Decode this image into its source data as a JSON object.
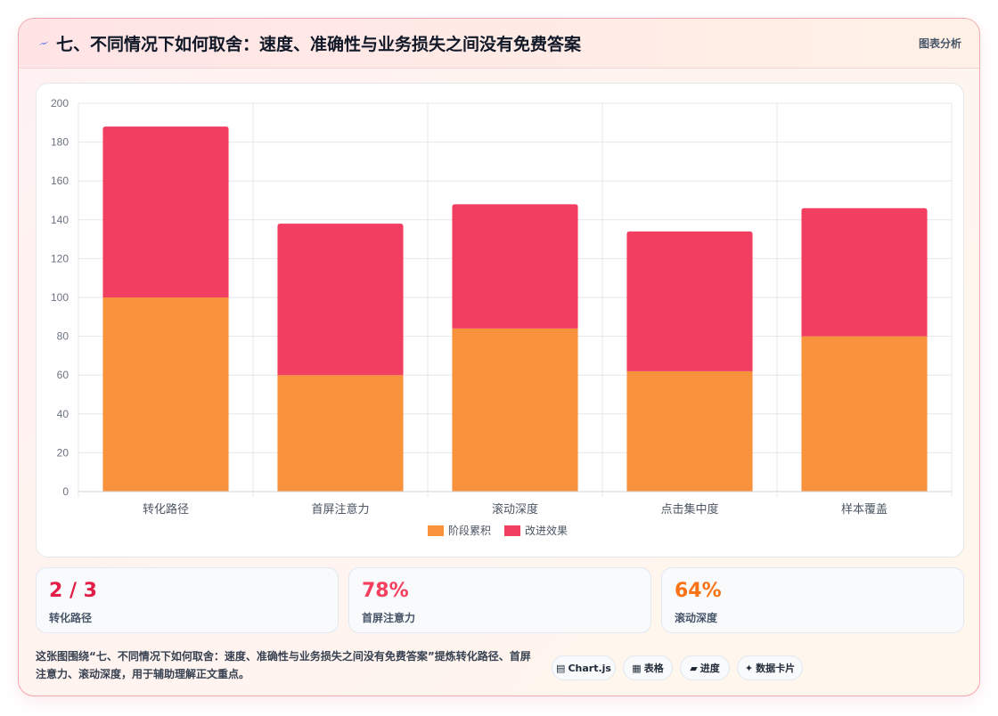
{
  "header": {
    "icon": "lightning-icon",
    "title": "七、不同情况下如何取舍：速度、准确性与业务损失之间没有免费答案",
    "tag": "图表分析"
  },
  "chart_data": {
    "type": "bar",
    "stacked": true,
    "categories": [
      "转化路径",
      "首屏注意力",
      "滚动深度",
      "点击集中度",
      "样本覆盖"
    ],
    "series": [
      {
        "name": "阶段累积",
        "color": "#f9923d",
        "values": [
          100,
          60,
          84,
          62,
          80
        ]
      },
      {
        "name": "改进效果",
        "color": "#f23f61",
        "values": [
          88,
          78,
          64,
          72,
          66
        ]
      }
    ],
    "ylim": [
      0,
      200
    ],
    "yticks": [
      0,
      20,
      40,
      60,
      80,
      100,
      120,
      140,
      160,
      180,
      200
    ],
    "grid": true,
    "legend_position": "bottom"
  },
  "stats": [
    {
      "value": "2 / 3",
      "label": "转化路径",
      "color": "#e11d48"
    },
    {
      "value": "78%",
      "label": "首屏注意力",
      "color": "#f43f5e"
    },
    {
      "value": "64%",
      "label": "滚动深度",
      "color": "#f97316"
    }
  ],
  "footer": {
    "description": "这张图围绕“七、不同情况下如何取舍：速度、准确性与业务损失之间没有免费答案”提炼转化路径、首屏注意力、滚动深度，用于辅助理解正文重点。",
    "chips": [
      {
        "icon": "chart-icon",
        "glyph": "▤",
        "label": "Chart.js"
      },
      {
        "icon": "table-icon",
        "glyph": "▦",
        "label": "表格"
      },
      {
        "icon": "progress-icon",
        "glyph": "▰",
        "label": "进度"
      },
      {
        "icon": "card-icon",
        "glyph": "✦",
        "label": "数据卡片"
      }
    ]
  }
}
